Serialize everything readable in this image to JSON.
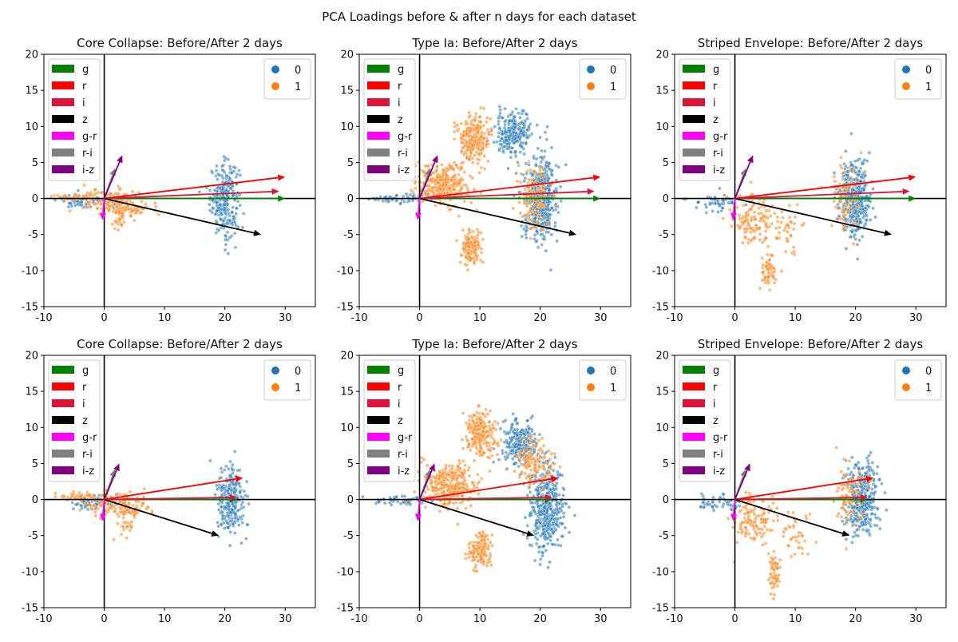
{
  "figure": {
    "suptitle": "PCA Loadings before & after n days for each dataset"
  },
  "colors": {
    "class0": "#1f77b4",
    "class1": "#ff7f0e",
    "loadings": {
      "g": "#008000",
      "r": "#ff0000",
      "i": "#dc143c",
      "z": "#000000",
      "g-r": "#ff00ff",
      "r-i": "#808080",
      "i-z": "#800080"
    }
  },
  "chart_data": [
    {
      "type": "scatter",
      "title": "Core Collapse: Before/After 2 days",
      "xlim": [
        -10,
        35
      ],
      "ylim": [
        -15,
        20
      ],
      "xticks": [
        -10,
        0,
        10,
        20,
        30
      ],
      "yticks": [
        -15,
        -10,
        -5,
        0,
        5,
        10,
        15,
        20
      ],
      "legend_loadings": [
        "g",
        "r",
        "i",
        "z",
        "g-r",
        "r-i",
        "i-z"
      ],
      "legend_classes": [
        "0",
        "1"
      ],
      "arrows": [
        {
          "name": "g",
          "dx": 30,
          "dy": 0
        },
        {
          "name": "r",
          "dx": 30,
          "dy": 3
        },
        {
          "name": "i",
          "dx": 29,
          "dy": 1
        },
        {
          "name": "z",
          "dx": 26,
          "dy": -5
        },
        {
          "name": "g-r",
          "dx": -0.3,
          "dy": -3
        },
        {
          "name": "r-i",
          "dx": 1.8,
          "dy": 4.2
        },
        {
          "name": "i-z",
          "dx": 3,
          "dy": 6
        }
      ],
      "clusters": [
        {
          "cls": "0",
          "cx": 20,
          "cy": 0,
          "sx": 1.2,
          "sy": 2.5,
          "n": 240
        },
        {
          "cls": "0",
          "cx": -3,
          "cy": -0.4,
          "sx": 2.4,
          "sy": 0.5,
          "n": 60
        },
        {
          "cls": "1",
          "cx": 1.5,
          "cy": -0.6,
          "sx": 2.5,
          "sy": 0.9,
          "n": 120
        },
        {
          "cls": "1",
          "cx": 4.5,
          "cy": -1.6,
          "sx": 1.5,
          "sy": 0.4,
          "n": 40
        },
        {
          "cls": "1",
          "cx": 2.5,
          "cy": -3.2,
          "sx": 1.0,
          "sy": 0.9,
          "n": 20
        },
        {
          "cls": "1",
          "cx": -4.5,
          "cy": 0.3,
          "sx": 1.8,
          "sy": 0.3,
          "n": 40
        }
      ]
    },
    {
      "type": "scatter",
      "title": "Type Ia: Before/After 2 days",
      "xlim": [
        -10,
        35
      ],
      "ylim": [
        -15,
        20
      ],
      "xticks": [
        -10,
        0,
        10,
        20,
        30
      ],
      "yticks": [
        -15,
        -10,
        -5,
        0,
        5,
        10,
        15,
        20
      ],
      "legend_loadings": [
        "g",
        "r",
        "i",
        "z",
        "g-r",
        "r-i",
        "i-z"
      ],
      "legend_classes": [
        "0",
        "1"
      ],
      "arrows": [
        {
          "name": "g",
          "dx": 30,
          "dy": 0
        },
        {
          "name": "r",
          "dx": 30,
          "dy": 3
        },
        {
          "name": "i",
          "dx": 29,
          "dy": 1
        },
        {
          "name": "z",
          "dx": 26,
          "dy": -5
        },
        {
          "name": "g-r",
          "dx": -0.3,
          "dy": -3
        },
        {
          "name": "r-i",
          "dx": 1.8,
          "dy": 4.2
        },
        {
          "name": "i-z",
          "dx": 3,
          "dy": 6
        }
      ],
      "clusters": [
        {
          "cls": "0",
          "cx": 20,
          "cy": 0,
          "sx": 1.4,
          "sy": 2.8,
          "n": 420
        },
        {
          "cls": "0",
          "cx": 15.5,
          "cy": 9,
          "sx": 1.5,
          "sy": 1.5,
          "n": 230
        },
        {
          "cls": "0",
          "cx": -3,
          "cy": 0,
          "sx": 2.5,
          "sy": 0.3,
          "n": 50
        },
        {
          "cls": "1",
          "cx": 9,
          "cy": 8.5,
          "sx": 1.3,
          "sy": 1.5,
          "n": 220
        },
        {
          "cls": "1",
          "cx": 4,
          "cy": 2,
          "sx": 2.2,
          "sy": 1.5,
          "n": 300
        },
        {
          "cls": "1",
          "cx": 8.5,
          "cy": -7,
          "sx": 0.9,
          "sy": 1.4,
          "n": 130
        },
        {
          "cls": "1",
          "cx": 19,
          "cy": 0,
          "sx": 1.3,
          "sy": 2.5,
          "n": 120
        }
      ]
    },
    {
      "type": "scatter",
      "title": "Striped Envelope: Before/After 2 days",
      "xlim": [
        -10,
        35
      ],
      "ylim": [
        -15,
        20
      ],
      "xticks": [
        -10,
        0,
        10,
        20,
        30
      ],
      "yticks": [
        -15,
        -10,
        -5,
        0,
        5,
        10,
        15,
        20
      ],
      "legend_loadings": [
        "g",
        "r",
        "i",
        "z",
        "g-r",
        "r-i",
        "i-z"
      ],
      "legend_classes": [
        "0",
        "1"
      ],
      "arrows": [
        {
          "name": "g",
          "dx": 30,
          "dy": 0
        },
        {
          "name": "r",
          "dx": 30,
          "dy": 3
        },
        {
          "name": "i",
          "dx": 29,
          "dy": 1
        },
        {
          "name": "z",
          "dx": 26,
          "dy": -5
        },
        {
          "name": "g-r",
          "dx": -0.3,
          "dy": -3
        },
        {
          "name": "r-i",
          "dx": 1.8,
          "dy": 4.2
        },
        {
          "name": "i-z",
          "dx": 3,
          "dy": 6
        }
      ],
      "clusters": [
        {
          "cls": "0",
          "cx": 20,
          "cy": 0,
          "sx": 1.3,
          "sy": 2.6,
          "n": 380
        },
        {
          "cls": "0",
          "cx": -3,
          "cy": -0.5,
          "sx": 2.0,
          "sy": 0.6,
          "n": 50
        },
        {
          "cls": "1",
          "cx": 3,
          "cy": -3,
          "sx": 1.7,
          "sy": 1.6,
          "n": 120
        },
        {
          "cls": "1",
          "cx": 5.5,
          "cy": -10,
          "sx": 0.6,
          "sy": 1.3,
          "n": 60
        },
        {
          "cls": "1",
          "cx": 8.5,
          "cy": -5,
          "sx": 1.2,
          "sy": 1.8,
          "n": 40
        },
        {
          "cls": "1",
          "cx": 18,
          "cy": 0.3,
          "sx": 1.3,
          "sy": 2.2,
          "n": 80
        }
      ]
    },
    {
      "type": "scatter",
      "title": "Core Collapse: Before/After 2 days",
      "xlim": [
        -10,
        35
      ],
      "ylim": [
        -15,
        20
      ],
      "xticks": [
        -10,
        0,
        10,
        20,
        30
      ],
      "yticks": [
        -15,
        -10,
        -5,
        0,
        5,
        10,
        15,
        20
      ],
      "legend_loadings": [
        "g",
        "r",
        "i",
        "z",
        "g-r",
        "r-i",
        "i-z"
      ],
      "legend_classes": [
        "0",
        "1"
      ],
      "arrows": [
        {
          "name": "g",
          "dx": 22,
          "dy": 0
        },
        {
          "name": "r",
          "dx": 23,
          "dy": 3
        },
        {
          "name": "i",
          "dx": 22,
          "dy": 0.3
        },
        {
          "name": "z",
          "dx": 19,
          "dy": -5
        },
        {
          "name": "g-r",
          "dx": -0.3,
          "dy": -3
        },
        {
          "name": "r-i",
          "dx": 1.8,
          "dy": 4.2
        },
        {
          "name": "i-z",
          "dx": 2.5,
          "dy": 5
        }
      ],
      "clusters": [
        {
          "cls": "0",
          "cx": 21,
          "cy": 0,
          "sx": 1.2,
          "sy": 2.5,
          "n": 240
        },
        {
          "cls": "0",
          "cx": -2,
          "cy": -0.4,
          "sx": 2.2,
          "sy": 0.5,
          "n": 60
        },
        {
          "cls": "1",
          "cx": 1.5,
          "cy": -0.6,
          "sx": 2.5,
          "sy": 0.9,
          "n": 120
        },
        {
          "cls": "1",
          "cx": 4.5,
          "cy": -1.6,
          "sx": 1.5,
          "sy": 0.4,
          "n": 40
        },
        {
          "cls": "1",
          "cx": 3.5,
          "cy": -3.4,
          "sx": 1.0,
          "sy": 0.9,
          "n": 20
        },
        {
          "cls": "1",
          "cx": -4.5,
          "cy": 0.4,
          "sx": 1.8,
          "sy": 0.3,
          "n": 40
        }
      ]
    },
    {
      "type": "scatter",
      "title": "Type Ia: Before/After 2 days",
      "xlim": [
        -10,
        35
      ],
      "ylim": [
        -15,
        20
      ],
      "xticks": [
        -10,
        0,
        10,
        20,
        30
      ],
      "yticks": [
        -15,
        -10,
        -5,
        0,
        5,
        10,
        15,
        20
      ],
      "legend_loadings": [
        "g",
        "r",
        "i",
        "z",
        "g-r",
        "r-i",
        "i-z"
      ],
      "legend_classes": [
        "0",
        "1"
      ],
      "arrows": [
        {
          "name": "g",
          "dx": 22,
          "dy": 0
        },
        {
          "name": "r",
          "dx": 23,
          "dy": 3
        },
        {
          "name": "i",
          "dx": 22,
          "dy": 0.3
        },
        {
          "name": "z",
          "dx": 19,
          "dy": -5
        },
        {
          "name": "g-r",
          "dx": -0.3,
          "dy": -3
        },
        {
          "name": "r-i",
          "dx": 1.8,
          "dy": 4.2
        },
        {
          "name": "i-z",
          "dx": 2.5,
          "dy": 5
        }
      ],
      "clusters": [
        {
          "cls": "0",
          "cx": 21,
          "cy": -1,
          "sx": 1.4,
          "sy": 3.0,
          "n": 420
        },
        {
          "cls": "0",
          "cx": 16.5,
          "cy": 8,
          "sx": 1.5,
          "sy": 1.6,
          "n": 230
        },
        {
          "cls": "0",
          "cx": -3,
          "cy": 0,
          "sx": 2.5,
          "sy": 0.3,
          "n": 50
        },
        {
          "cls": "1",
          "cx": 10,
          "cy": 9,
          "sx": 1.3,
          "sy": 1.5,
          "n": 220
        },
        {
          "cls": "1",
          "cx": 5,
          "cy": 2,
          "sx": 2.2,
          "sy": 1.5,
          "n": 300
        },
        {
          "cls": "1",
          "cx": 10,
          "cy": -7,
          "sx": 0.9,
          "sy": 1.3,
          "n": 130
        },
        {
          "cls": "1",
          "cx": 19,
          "cy": 5,
          "sx": 1.5,
          "sy": 1.8,
          "n": 120
        }
      ]
    },
    {
      "type": "scatter",
      "title": "Striped Envelope: Before/After 2 days",
      "xlim": [
        -10,
        35
      ],
      "ylim": [
        -15,
        20
      ],
      "xticks": [
        -10,
        0,
        10,
        20,
        30
      ],
      "yticks": [
        -15,
        -10,
        -5,
        0,
        5,
        10,
        15,
        20
      ],
      "legend_loadings": [
        "g",
        "r",
        "i",
        "z",
        "g-r",
        "r-i",
        "i-z"
      ],
      "legend_classes": [
        "0",
        "1"
      ],
      "arrows": [
        {
          "name": "g",
          "dx": 22,
          "dy": 0
        },
        {
          "name": "r",
          "dx": 23,
          "dy": 3
        },
        {
          "name": "i",
          "dx": 22,
          "dy": 0.3
        },
        {
          "name": "z",
          "dx": 19,
          "dy": -5
        },
        {
          "name": "g-r",
          "dx": -0.3,
          "dy": -3
        },
        {
          "name": "r-i",
          "dx": 1.8,
          "dy": 4.2
        },
        {
          "name": "i-z",
          "dx": 2.5,
          "dy": 5
        }
      ],
      "clusters": [
        {
          "cls": "0",
          "cx": 21,
          "cy": 0,
          "sx": 1.3,
          "sy": 2.6,
          "n": 380
        },
        {
          "cls": "0",
          "cx": -2.5,
          "cy": -0.4,
          "sx": 2.0,
          "sy": 0.6,
          "n": 50
        },
        {
          "cls": "1",
          "cx": 3,
          "cy": -3,
          "sx": 1.7,
          "sy": 1.6,
          "n": 120
        },
        {
          "cls": "1",
          "cx": 6.5,
          "cy": -10,
          "sx": 0.6,
          "sy": 1.3,
          "n": 60
        },
        {
          "cls": "1",
          "cx": 10,
          "cy": -5,
          "sx": 1.3,
          "sy": 2.0,
          "n": 40
        },
        {
          "cls": "1",
          "cx": 19,
          "cy": 0.3,
          "sx": 1.3,
          "sy": 2.2,
          "n": 80
        }
      ]
    }
  ]
}
